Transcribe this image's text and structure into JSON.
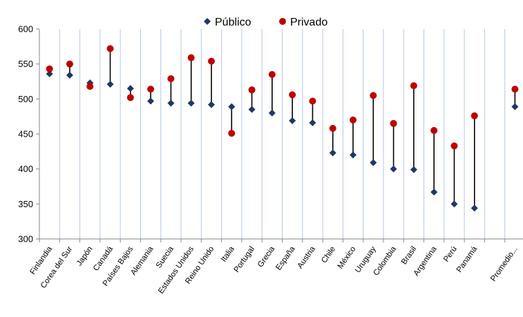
{
  "chart_data": {
    "type": "scatter",
    "categories": [
      "Finlandia",
      "Corea del Sur",
      "Japón",
      "Canadá",
      "Países Bajos",
      "Alemania",
      "Suecia",
      "Estados Unidos",
      "Reino Unido",
      "Italia",
      "Portugal",
      "Grecia",
      "España",
      "Austria",
      "Chile",
      "México",
      "Uruguay",
      "Colombia",
      "Brasil",
      "Argentina",
      "Perú",
      "Panamá",
      "",
      "Promedio..."
    ],
    "series": [
      {
        "name": "Público",
        "marker": "diamond",
        "color": "#1f3864",
        "values": [
          536,
          534,
          523,
          521,
          515,
          497,
          494,
          494,
          492,
          489,
          485,
          480,
          469,
          466,
          423,
          420,
          409,
          400,
          399,
          367,
          350,
          344,
          null,
          489
        ]
      },
      {
        "name": "Privado",
        "marker": "circle",
        "color": "#c00000",
        "values": [
          543,
          550,
          518,
          572,
          502,
          514,
          529,
          559,
          554,
          451,
          513,
          535,
          506,
          497,
          458,
          470,
          505,
          465,
          519,
          455,
          433,
          476,
          null,
          514
        ]
      }
    ],
    "connector": "vertical line between Público and Privado values in each category",
    "ylim": [
      300,
      600
    ],
    "yticks": [
      "300",
      "350",
      "400",
      "450",
      "500",
      "550",
      "600"
    ],
    "grid": "vertical lines between categories",
    "legend": "top-center"
  }
}
